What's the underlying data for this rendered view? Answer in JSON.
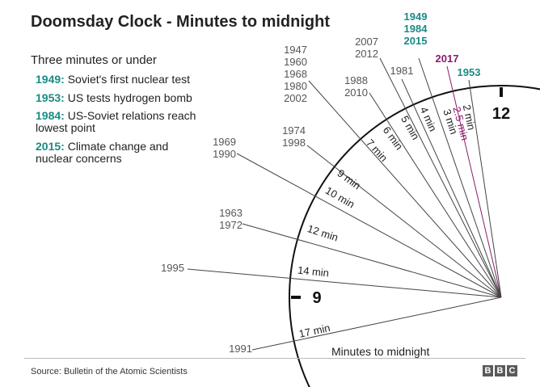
{
  "title": "Doomsday Clock - Minutes to midnight",
  "legend": {
    "heading": "Three minutes or under",
    "items": [
      {
        "year": "1949:",
        "text": "Soviet's first nuclear test"
      },
      {
        "year": "1953:",
        "text": "US tests hydrogen bomb"
      },
      {
        "year": "1984:",
        "text": "US-Soviet relations reach lowest point"
      },
      {
        "year": "2015:",
        "text": "Climate change and nuclear concerns"
      }
    ]
  },
  "source": "Source: Bulletin of the Atomic Scientists",
  "logo": [
    "B",
    "B",
    "C"
  ],
  "colors": {
    "teal": "#1a8a86",
    "purple": "#8b1a6e",
    "text": "#222222",
    "gray": "#555555"
  },
  "chart_data": {
    "type": "radial-clock",
    "xlabel": "Minutes to midnight",
    "hour_labels": [
      {
        "minutes": 0,
        "label": "12"
      },
      {
        "minutes": 15,
        "label": "9"
      }
    ],
    "entries": [
      {
        "minutes": 17,
        "label": "17 min",
        "years": [
          "1991"
        ]
      },
      {
        "minutes": 14,
        "label": "14 min",
        "years": [
          "1995"
        ]
      },
      {
        "minutes": 12,
        "label": "12 min",
        "years": [
          "1963",
          "1972"
        ]
      },
      {
        "minutes": 10,
        "label": "10 min",
        "years": [
          "1969",
          "1990"
        ]
      },
      {
        "minutes": 9,
        "label": "9 min",
        "years": [
          "1974",
          "1998"
        ]
      },
      {
        "minutes": 7,
        "label": "7 min",
        "years": [
          "1947",
          "1960",
          "1968",
          "1980",
          "2002"
        ]
      },
      {
        "minutes": 6,
        "label": "6 min",
        "years": [
          "1988",
          "2010"
        ]
      },
      {
        "minutes": 5,
        "label": "5 min",
        "years": [
          "2007",
          "2012"
        ]
      },
      {
        "minutes": 4,
        "label": "4 min",
        "years": [
          "1981"
        ]
      },
      {
        "minutes": 3,
        "label": "3 min",
        "years": [
          "1949",
          "1984",
          "2015"
        ],
        "highlight": "teal"
      },
      {
        "minutes": 2.5,
        "label": "2.5 min",
        "years": [
          "2017"
        ],
        "highlight": "purple"
      },
      {
        "minutes": 2,
        "label": "2 min",
        "years": [
          "1953"
        ],
        "highlight": "teal"
      }
    ]
  }
}
